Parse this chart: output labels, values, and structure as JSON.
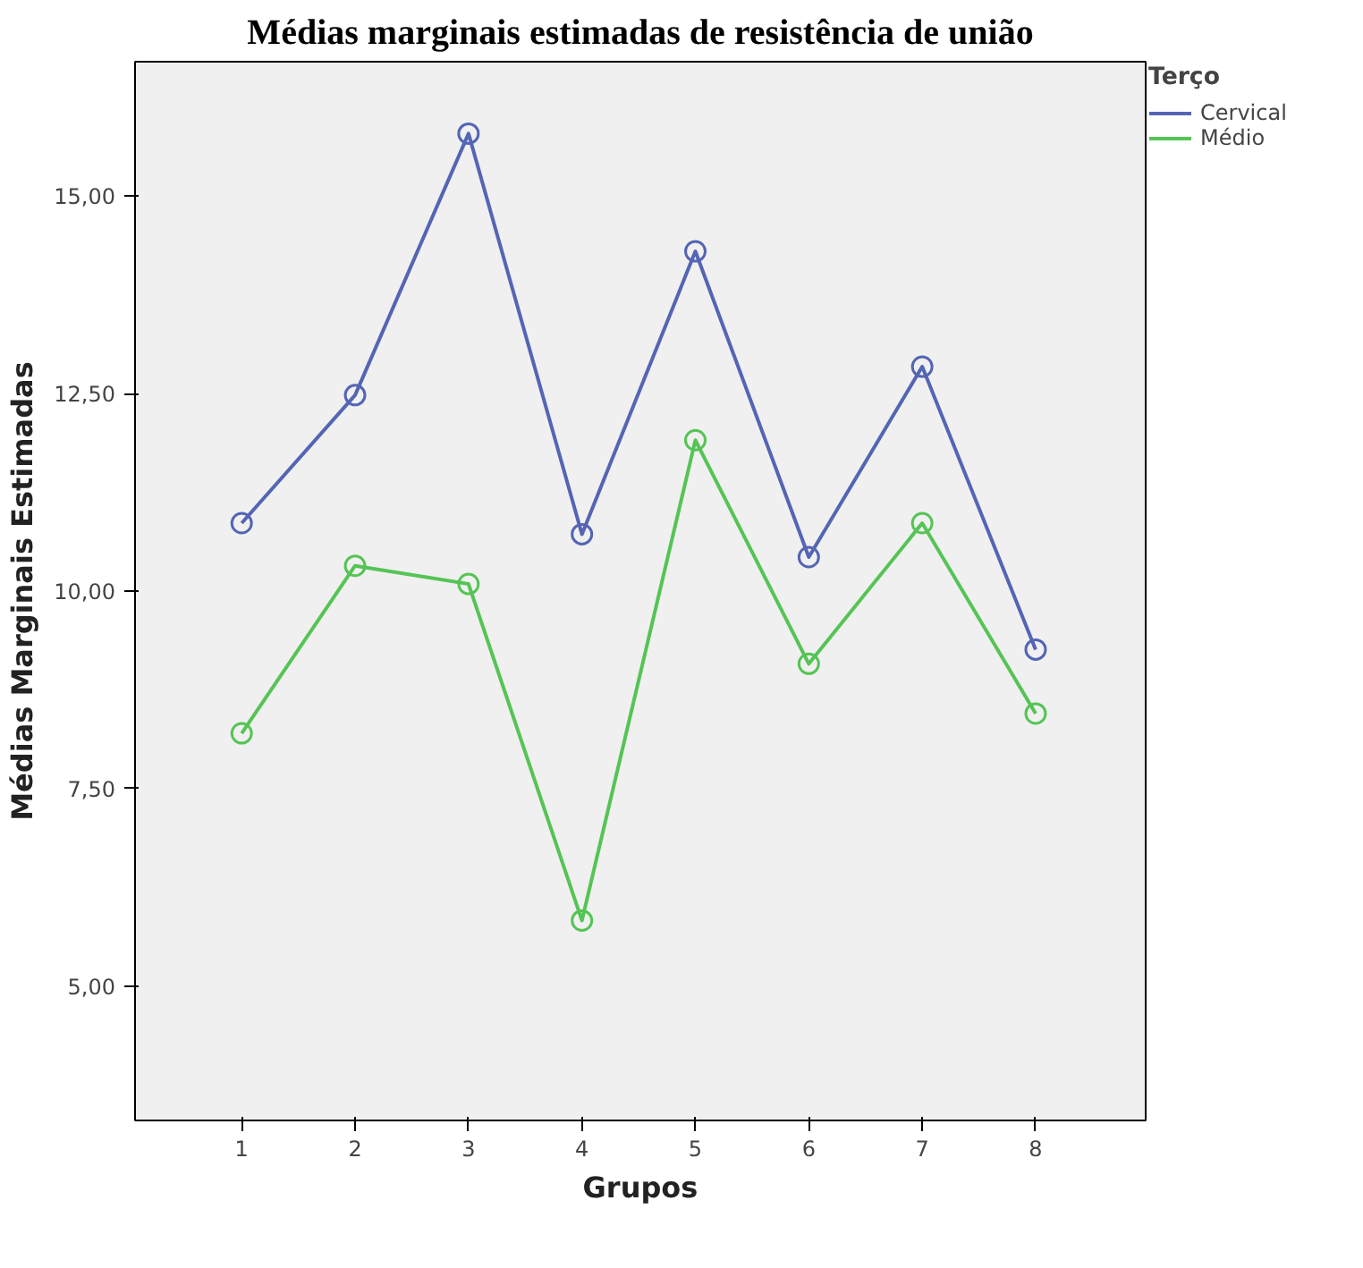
{
  "chart_data": {
    "type": "line",
    "title": "Médias marginais estimadas de resistência de união",
    "xlabel": "Grupos",
    "ylabel": "Médias Marginais Estimadas",
    "legend_title": "Terço",
    "x": [
      1,
      2,
      3,
      4,
      5,
      6,
      7,
      8
    ],
    "series": [
      {
        "name": "Cervical",
        "color": "#5465b4",
        "values": [
          10.86,
          12.48,
          15.79,
          10.72,
          14.3,
          10.43,
          12.84,
          9.26
        ]
      },
      {
        "name": "Médio",
        "color": "#55c455",
        "values": [
          8.2,
          10.32,
          10.09,
          5.83,
          11.91,
          9.08,
          10.86,
          8.45
        ]
      }
    ],
    "xlim": [
      0.06,
      8.97
    ],
    "ylim": [
      3.3,
      16.7
    ],
    "xticks": [
      1,
      2,
      3,
      4,
      5,
      6,
      7,
      8
    ],
    "yticks": [
      {
        "value": 5,
        "label": "5,00"
      },
      {
        "value": 7.5,
        "label": "7,50"
      },
      {
        "value": 10,
        "label": "10,00"
      },
      {
        "value": 12.5,
        "label": "12,50"
      },
      {
        "value": 15,
        "label": "15,00"
      }
    ],
    "marker": "circle",
    "line_style": "solid",
    "grid": false,
    "legend": "top right"
  }
}
